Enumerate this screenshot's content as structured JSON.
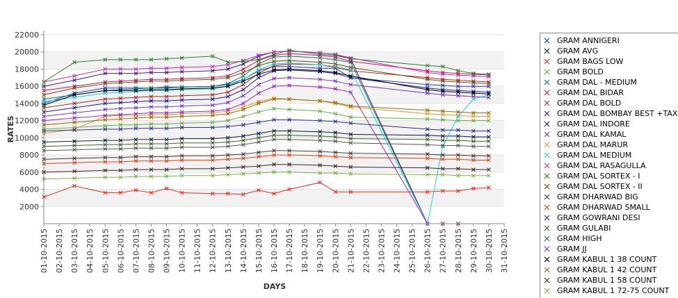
{
  "chart_data": {
    "type": "line",
    "title": "",
    "xlabel": "DAYS",
    "ylabel": "RATES",
    "ylim": [
      0,
      22000
    ],
    "y_ticks": [
      2000,
      4000,
      6000,
      8000,
      10000,
      12000,
      14000,
      16000,
      18000,
      20000,
      22000
    ],
    "grid": "horizontal bands",
    "legend_position": "right",
    "x": [
      "01-10-2015",
      "02-10-2015",
      "03-10-2015",
      "04-10-2015",
      "05-10-2015",
      "06-10-2015",
      "07-10-2015",
      "08-10-2015",
      "09-10-2015",
      "10-10-2015",
      "11-10-2015",
      "12-10-2015",
      "13-10-2015",
      "14-10-2015",
      "15-10-2015",
      "16-10-2015",
      "17-10-2015",
      "18-10-2015",
      "19-10-2015",
      "20-10-2015",
      "21-10-2015",
      "22-10-2015",
      "23-10-2015",
      "24-10-2015",
      "25-10-2015",
      "26-10-2015",
      "27-10-2015",
      "28-10-2015",
      "29-10-2015",
      "30-10-2015",
      "31-10-2015"
    ],
    "series": [
      {
        "name": "GRAM ANNIGERI",
        "color": "#1f3fbf",
        "values": [
          14000,
          null,
          15200,
          null,
          15800,
          15800,
          15800,
          15800,
          15900,
          15900,
          null,
          16000,
          16200,
          16800,
          17800,
          18300,
          18300,
          null,
          18100,
          18100,
          17000,
          null,
          null,
          null,
          null,
          16200,
          16100,
          16000,
          16000,
          16000,
          null
        ]
      },
      {
        "name": "GRAM AVG",
        "color": "#0b1a3a",
        "values": [
          9500,
          null,
          9600,
          null,
          9700,
          9700,
          9800,
          9800,
          9800,
          9900,
          null,
          9900,
          10000,
          10200,
          10500,
          10800,
          10800,
          null,
          10700,
          10600,
          10400,
          null,
          null,
          null,
          null,
          10300,
          10200,
          10200,
          10100,
          10100,
          null
        ]
      },
      {
        "name": "GRAM BAGS LOW",
        "color": "#e0301e",
        "values": [
          3100,
          null,
          4400,
          null,
          3600,
          3600,
          3900,
          3600,
          4100,
          3600,
          null,
          3500,
          3500,
          3400,
          3900,
          3500,
          4000,
          null,
          4800,
          3700,
          3700,
          null,
          null,
          null,
          null,
          3700,
          3800,
          3800,
          4100,
          4200,
          null
        ]
      },
      {
        "name": "GRAM BOLD",
        "color": "#6aa84f",
        "values": [
          11000,
          null,
          11200,
          null,
          11400,
          11500,
          11500,
          11600,
          11600,
          11700,
          null,
          11800,
          12000,
          12500,
          13000,
          13400,
          13300,
          null,
          13100,
          12800,
          12400,
          null,
          null,
          null,
          null,
          12200,
          12100,
          12000,
          12000,
          12000,
          null
        ]
      },
      {
        "name": "GRAM DAL - MEDIUM",
        "color": "#0f7d6f",
        "values": [
          14500,
          null,
          15000,
          null,
          15500,
          15600,
          15700,
          15800,
          15800,
          15900,
          null,
          16000,
          16300,
          17200,
          18600,
          19400,
          19500,
          null,
          19300,
          19100,
          18800,
          null,
          null,
          null,
          null,
          0,
          0,
          0,
          null,
          null,
          null
        ]
      },
      {
        "name": "GRAM DAL BIDAR",
        "color": "#b22222",
        "values": [
          13500,
          null,
          14000,
          null,
          14500,
          14600,
          14700,
          14800,
          14800,
          14900,
          null,
          15000,
          15300,
          16200,
          17500,
          18400,
          18600,
          null,
          18500,
          18200,
          17800,
          null,
          null,
          null,
          null,
          17000,
          16800,
          16700,
          16600,
          16500,
          null
        ]
      },
      {
        "name": "GRAM DAL BOLD",
        "color": "#c2185b",
        "values": [
          15500,
          null,
          16000,
          null,
          16500,
          16600,
          16700,
          16800,
          16800,
          16900,
          null,
          17000,
          17200,
          18000,
          19000,
          19600,
          19800,
          null,
          19600,
          19400,
          18900,
          null,
          null,
          null,
          null,
          17800,
          17600,
          17500,
          17400,
          17300,
          null
        ]
      },
      {
        "name": "GRAM DAL BOMBAY BEST +TAX",
        "color": "#3a1f6e",
        "values": [
          16000,
          null,
          16700,
          null,
          17500,
          17500,
          17500,
          17600,
          17600,
          17700,
          null,
          17800,
          18000,
          18600,
          19500,
          20000,
          20100,
          null,
          19900,
          19700,
          19200,
          null,
          null,
          null,
          null,
          0,
          0,
          0,
          null,
          null,
          null
        ]
      },
      {
        "name": "GRAM DAL INDORE",
        "color": "#1a1a8c",
        "values": [
          13000,
          null,
          13500,
          null,
          14000,
          14100,
          14200,
          14300,
          14300,
          14400,
          null,
          14500,
          14800,
          15600,
          17000,
          17800,
          17900,
          null,
          17700,
          17500,
          17000,
          null,
          null,
          null,
          null,
          15800,
          15600,
          15500,
          15400,
          15300,
          null
        ]
      },
      {
        "name": "GRAM DAL KAMAL",
        "color": "#7b2fbf",
        "values": [
          12500,
          null,
          12900,
          null,
          13300,
          13400,
          13500,
          13600,
          13600,
          13700,
          null,
          13800,
          14100,
          14900,
          16200,
          16900,
          17000,
          null,
          16800,
          16600,
          16200,
          null,
          null,
          null,
          null,
          15200,
          15000,
          14900,
          14800,
          14700,
          null
        ]
      },
      {
        "name": "GRAM DAL MARUR",
        "color": "#e69138",
        "values": [
          10500,
          null,
          11000,
          null,
          12500,
          12600,
          12600,
          12700,
          12700,
          12800,
          null,
          12900,
          13100,
          13600,
          14200,
          14600,
          14500,
          null,
          14300,
          14000,
          13600,
          null,
          null,
          null,
          null,
          12800,
          12700,
          12600,
          12500,
          12500,
          null
        ]
      },
      {
        "name": "GRAM DAL MEDIUM",
        "color": "#26c6da",
        "values": [
          14200,
          null,
          14700,
          null,
          15200,
          15300,
          15400,
          15500,
          15500,
          15600,
          null,
          15700,
          16000,
          16800,
          17900,
          18600,
          18700,
          null,
          18500,
          18300,
          17900,
          null,
          null,
          null,
          null,
          0,
          9000,
          12500,
          14500,
          15000,
          null
        ]
      },
      {
        "name": "GRAM DAL RASAGULLA",
        "color": "#c427c4",
        "values": [
          16500,
          null,
          17200,
          null,
          18000,
          18000,
          18000,
          18100,
          18100,
          18200,
          null,
          18300,
          18500,
          19000,
          19600,
          20000,
          20100,
          null,
          19900,
          19700,
          19300,
          null,
          null,
          null,
          null,
          17600,
          17400,
          17300,
          17200,
          17100,
          null
        ]
      },
      {
        "name": "GRAM DAL SORTEX - I",
        "color": "#2e7d32",
        "values": [
          16500,
          null,
          18800,
          null,
          19100,
          19100,
          19100,
          19100,
          19200,
          19300,
          null,
          19500,
          18800,
          18900,
          19100,
          19700,
          20200,
          null,
          19700,
          19600,
          19200,
          null,
          null,
          null,
          null,
          18400,
          18300,
          17800,
          17500,
          17400,
          null
        ]
      },
      {
        "name": "GRAM DAL SORTEX - II",
        "color": "#6b4e16",
        "values": [
          15000,
          null,
          15800,
          null,
          16300,
          16400,
          16500,
          16600,
          16600,
          16700,
          null,
          16800,
          17000,
          17600,
          18400,
          18900,
          19000,
          null,
          18800,
          18600,
          18200,
          null,
          null,
          null,
          null,
          16800,
          16600,
          16500,
          16400,
          16300,
          null
        ]
      },
      {
        "name": "GRAM DHARWAD BIG",
        "color": "#4e342e",
        "values": [
          7500,
          null,
          7600,
          null,
          7700,
          7700,
          7800,
          7800,
          7800,
          7900,
          null,
          7900,
          8000,
          8100,
          8300,
          8500,
          8500,
          null,
          8400,
          8300,
          8200,
          null,
          null,
          null,
          null,
          8100,
          8000,
          8000,
          7900,
          7900,
          null
        ]
      },
      {
        "name": "GRAM DHARWAD SMALL",
        "color": "#d84315",
        "values": [
          7000,
          null,
          7100,
          null,
          7200,
          7200,
          7300,
          7300,
          7300,
          7400,
          null,
          7400,
          7500,
          7600,
          7800,
          8000,
          8000,
          null,
          7900,
          7800,
          7700,
          null,
          null,
          null,
          null,
          7600,
          7500,
          7500,
          7400,
          7400,
          null
        ]
      },
      {
        "name": "GRAM GOWRANI DESI",
        "color": "#283593",
        "values": [
          10800,
          null,
          10900,
          null,
          11000,
          11000,
          11100,
          11100,
          11100,
          11200,
          null,
          11200,
          11300,
          11500,
          11800,
          12100,
          12100,
          null,
          12000,
          11900,
          11700,
          null,
          null,
          null,
          null,
          11000,
          10900,
          10900,
          10800,
          10800,
          null
        ]
      },
      {
        "name": "GRAM GULABI",
        "color": "#33691e",
        "values": [
          9000,
          null,
          9100,
          null,
          9200,
          9200,
          9300,
          9300,
          9300,
          9400,
          null,
          9400,
          9500,
          9700,
          10000,
          10300,
          10300,
          null,
          10200,
          10100,
          9900,
          null,
          null,
          null,
          null,
          9800,
          9700,
          9700,
          9600,
          9600,
          null
        ]
      },
      {
        "name": "GRAM HIGH",
        "color": "#555555",
        "values": [
          8500,
          null,
          8600,
          null,
          8700,
          8700,
          8800,
          8800,
          8800,
          8900,
          null,
          8900,
          9000,
          9200,
          9500,
          9800,
          9800,
          null,
          9700,
          9600,
          9400,
          null,
          null,
          null,
          null,
          9200,
          9100,
          9100,
          9000,
          9000,
          null
        ]
      },
      {
        "name": "GRAM JJ",
        "color": "#9c27b0",
        "values": [
          12000,
          null,
          12300,
          null,
          12600,
          12700,
          12800,
          12900,
          12900,
          13000,
          null,
          13100,
          13300,
          14000,
          15200,
          16000,
          16100,
          null,
          15900,
          15700,
          15300,
          null,
          null,
          null,
          null,
          0,
          0,
          0,
          null,
          null,
          null
        ]
      },
      {
        "name": "GRAM KABUL 1 38 COUNT",
        "color": "#000000",
        "values": [
          13800,
          null,
          15000,
          null,
          15500,
          15500,
          15500,
          15600,
          15600,
          15700,
          null,
          15800,
          16000,
          16600,
          17400,
          17900,
          18000,
          null,
          17800,
          17600,
          17200,
          null,
          null,
          null,
          null,
          15600,
          15400,
          15300,
          15200,
          15100,
          null
        ]
      },
      {
        "name": "GRAM KABUL 1 42 COUNT",
        "color": "#8d6e00",
        "values": [
          11500,
          null,
          11800,
          null,
          12100,
          12200,
          12300,
          12400,
          12400,
          12500,
          null,
          12600,
          12800,
          13300,
          14000,
          14500,
          14500,
          null,
          14300,
          14100,
          13700,
          null,
          null,
          null,
          null,
          13200,
          13100,
          13000,
          12900,
          12900,
          null
        ]
      },
      {
        "name": "GRAM KABUL 1 58 COUNT",
        "color": "#3e2723",
        "values": [
          6000,
          null,
          6100,
          null,
          6200,
          6200,
          6300,
          6300,
          6300,
          6400,
          null,
          6400,
          6500,
          6600,
          6700,
          6900,
          6900,
          null,
          6800,
          6700,
          6600,
          null,
          null,
          null,
          null,
          6500,
          6400,
          6400,
          6300,
          6300,
          null
        ]
      },
      {
        "name": "GRAM KABUL 1 72-75 COUNT",
        "color": "#7cb342",
        "values": [
          5200,
          null,
          5300,
          null,
          5400,
          5400,
          5500,
          5500,
          5500,
          5600,
          null,
          5600,
          5700,
          5800,
          5900,
          6000,
          6000,
          null,
          5900,
          5900,
          5800,
          null,
          null,
          null,
          null,
          5700,
          5700,
          5600,
          5600,
          5600,
          null
        ]
      }
    ]
  }
}
